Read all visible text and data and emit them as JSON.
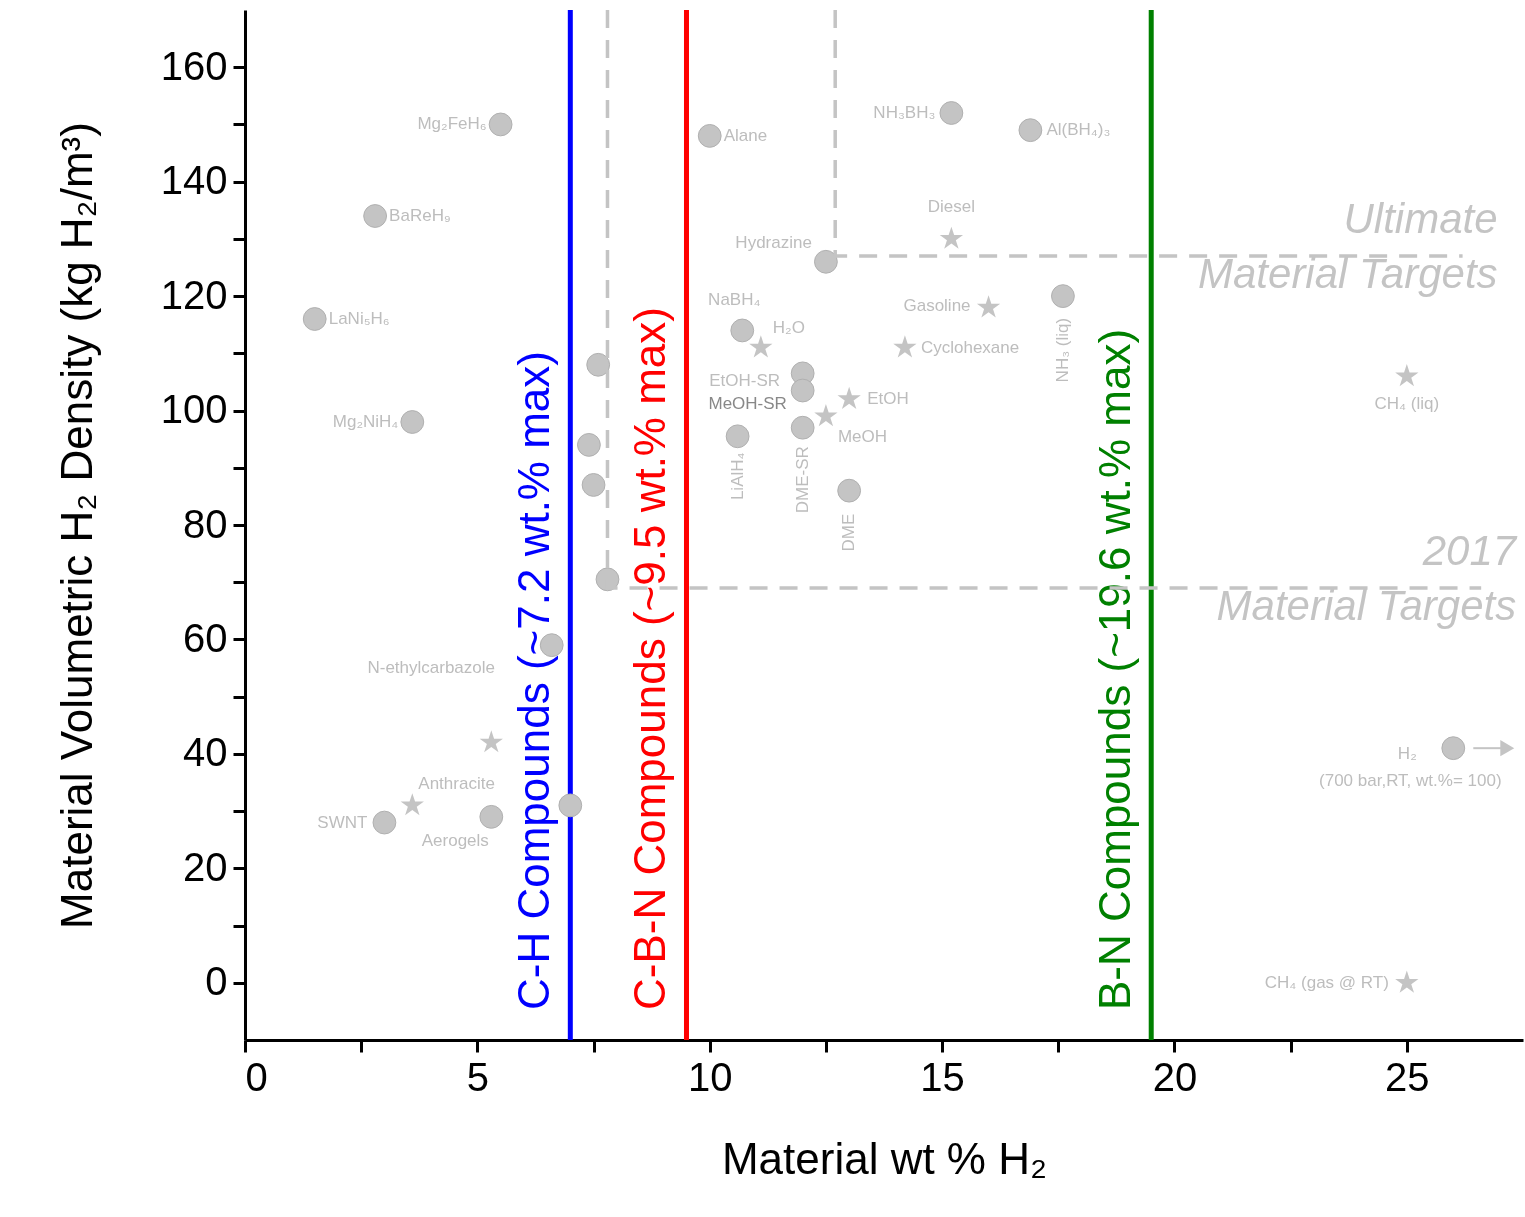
{
  "chart_data": {
    "type": "scatter",
    "xlabel": "Material wt % H₂",
    "ylabel": "Material Volumetric H₂ Density (kg H₂/m³)",
    "xlim": [
      0,
      27.5
    ],
    "ylim": [
      -10,
      170
    ],
    "xticks": [
      0,
      {
        "value": 2.5,
        "label": null
      },
      5,
      {
        "value": 7.5,
        "label": null
      },
      10,
      {
        "value": 12.5,
        "label": null
      },
      15,
      {
        "value": 17.5,
        "label": null
      },
      20,
      {
        "value": 22.5,
        "label": null
      },
      25
    ],
    "yticks": [
      0,
      {
        "value": 10,
        "label": null
      },
      20,
      {
        "value": 30,
        "label": null
      },
      40,
      {
        "value": 50,
        "label": null
      },
      60,
      {
        "value": 70,
        "label": null
      },
      80,
      {
        "value": 90,
        "label": null
      },
      100,
      {
        "value": 110,
        "label": null
      },
      120,
      {
        "value": 130,
        "label": null
      },
      140,
      {
        "value": 150,
        "label": null
      },
      160
    ],
    "grid": false,
    "series": [
      {
        "marker": "circle",
        "color": "#c4c4c4",
        "x": [
          5.5,
          2.8,
          1.5,
          3.6,
          7.6,
          7.4,
          7.5,
          7.8,
          6.6,
          5.3,
          3.0,
          7.0,
          10.0,
          15.2,
          16.9,
          12.5,
          10.7,
          12.0,
          12.0,
          10.6,
          12.0,
          13.0,
          17.6,
          26.0
        ],
        "values": [
          150,
          134,
          116,
          98,
          108,
          94,
          87,
          70.5,
          59,
          29,
          28,
          31,
          148,
          152,
          149,
          126,
          114,
          106.5,
          103.5,
          95.5,
          97,
          86,
          120,
          41
        ]
      },
      {
        "marker": "star",
        "color": "#c4c4c4",
        "x": [
          11.1,
          15.2,
          16.0,
          14.2,
          13.0,
          12.5,
          25.0,
          25.0,
          3.6,
          5.3
        ],
        "values": [
          111,
          130,
          118,
          111,
          102,
          99,
          106,
          0,
          31,
          42
        ]
      },
      {
        "type": "line",
        "name": "Ultimate Material Targets",
        "color": "#c4c4c4",
        "line_style": "dashed",
        "marker": "none",
        "x": [
          12.7,
          12.7,
          26.2
        ],
        "values": [
          170,
          127,
          127
        ]
      },
      {
        "type": "line",
        "name": "2017 Material Targets",
        "color": "#c4c4c4",
        "line_style": "dashed",
        "marker": "none",
        "x": [
          7.8,
          7.8,
          26.6
        ],
        "values": [
          170,
          69,
          69
        ]
      }
    ],
    "ref_lines": [
      {
        "axis": "x",
        "value": 7.0,
        "label": "C-H Compounds (~7.2 wt.% max)",
        "color": "#0000ff"
      },
      {
        "axis": "x",
        "value": 9.5,
        "label": "C-B-N Compounds (~9.5 wt.% max)",
        "color": "#ff0000"
      },
      {
        "axis": "x",
        "value": 19.5,
        "label": "B-N Compounds (~19.6 wt.% max)",
        "color": "#008000"
      }
    ],
    "annotations": [
      {
        "text": "Mg₂FeH₆",
        "x": 5.5,
        "y": 150
      },
      {
        "text": "BaReH₉",
        "x": 2.8,
        "y": 134
      },
      {
        "text": "LaNi₅H₆",
        "x": 1.5,
        "y": 116
      },
      {
        "text": "Mg₂NiH₄",
        "x": 3.6,
        "y": 98
      },
      {
        "text": "Alane",
        "x": 10.0,
        "y": 148
      },
      {
        "text": "NH₃BH₃",
        "x": 15.2,
        "y": 152
      },
      {
        "text": "Al(BH₄)₃",
        "x": 16.9,
        "y": 149
      },
      {
        "text": "Hydrazine",
        "x": 12.5,
        "y": 126
      },
      {
        "text": "NaBH₄",
        "x": 10.7,
        "y": 114
      },
      {
        "text": "H₂O",
        "x": 11.1,
        "y": 111
      },
      {
        "text": "EtOH-SR",
        "x": 12.0,
        "y": 106.5
      },
      {
        "text": "MeOH-SR",
        "x": 12.0,
        "y": 103.5
      },
      {
        "text": "LiAlH₄",
        "x": 10.6,
        "y": 95.5
      },
      {
        "text": "DME-SR",
        "x": 12.0,
        "y": 97
      },
      {
        "text": "DME",
        "x": 13.0,
        "y": 86
      },
      {
        "text": "Diesel",
        "x": 15.2,
        "y": 130
      },
      {
        "text": "Gasoline",
        "x": 16.0,
        "y": 118
      },
      {
        "text": "Cyclohexane",
        "x": 14.2,
        "y": 111
      },
      {
        "text": "EtOH",
        "x": 13.0,
        "y": 102
      },
      {
        "text": "MeOH",
        "x": 12.5,
        "y": 99
      },
      {
        "text": "NH₃ (liq)",
        "x": 17.6,
        "y": 120
      },
      {
        "text": "CH₄ (liq)",
        "x": 25.0,
        "y": 106
      },
      {
        "text": "H₂",
        "x": 26.0,
        "y": 41
      },
      {
        "text": "(700 bar,RT, wt.%= 100)",
        "x": 26.0,
        "y": 41
      },
      {
        "text": "CH₄ (gas @ RT)",
        "x": 25.0,
        "y": 0
      },
      {
        "text": "SWNT",
        "x": 3.0,
        "y": 28
      },
      {
        "text": "Anthracite",
        "x": 3.6,
        "y": 31
      },
      {
        "text": "Aerogels",
        "x": 5.3,
        "y": 29
      },
      "N-ethylcarbazole"
    ]
  }
}
